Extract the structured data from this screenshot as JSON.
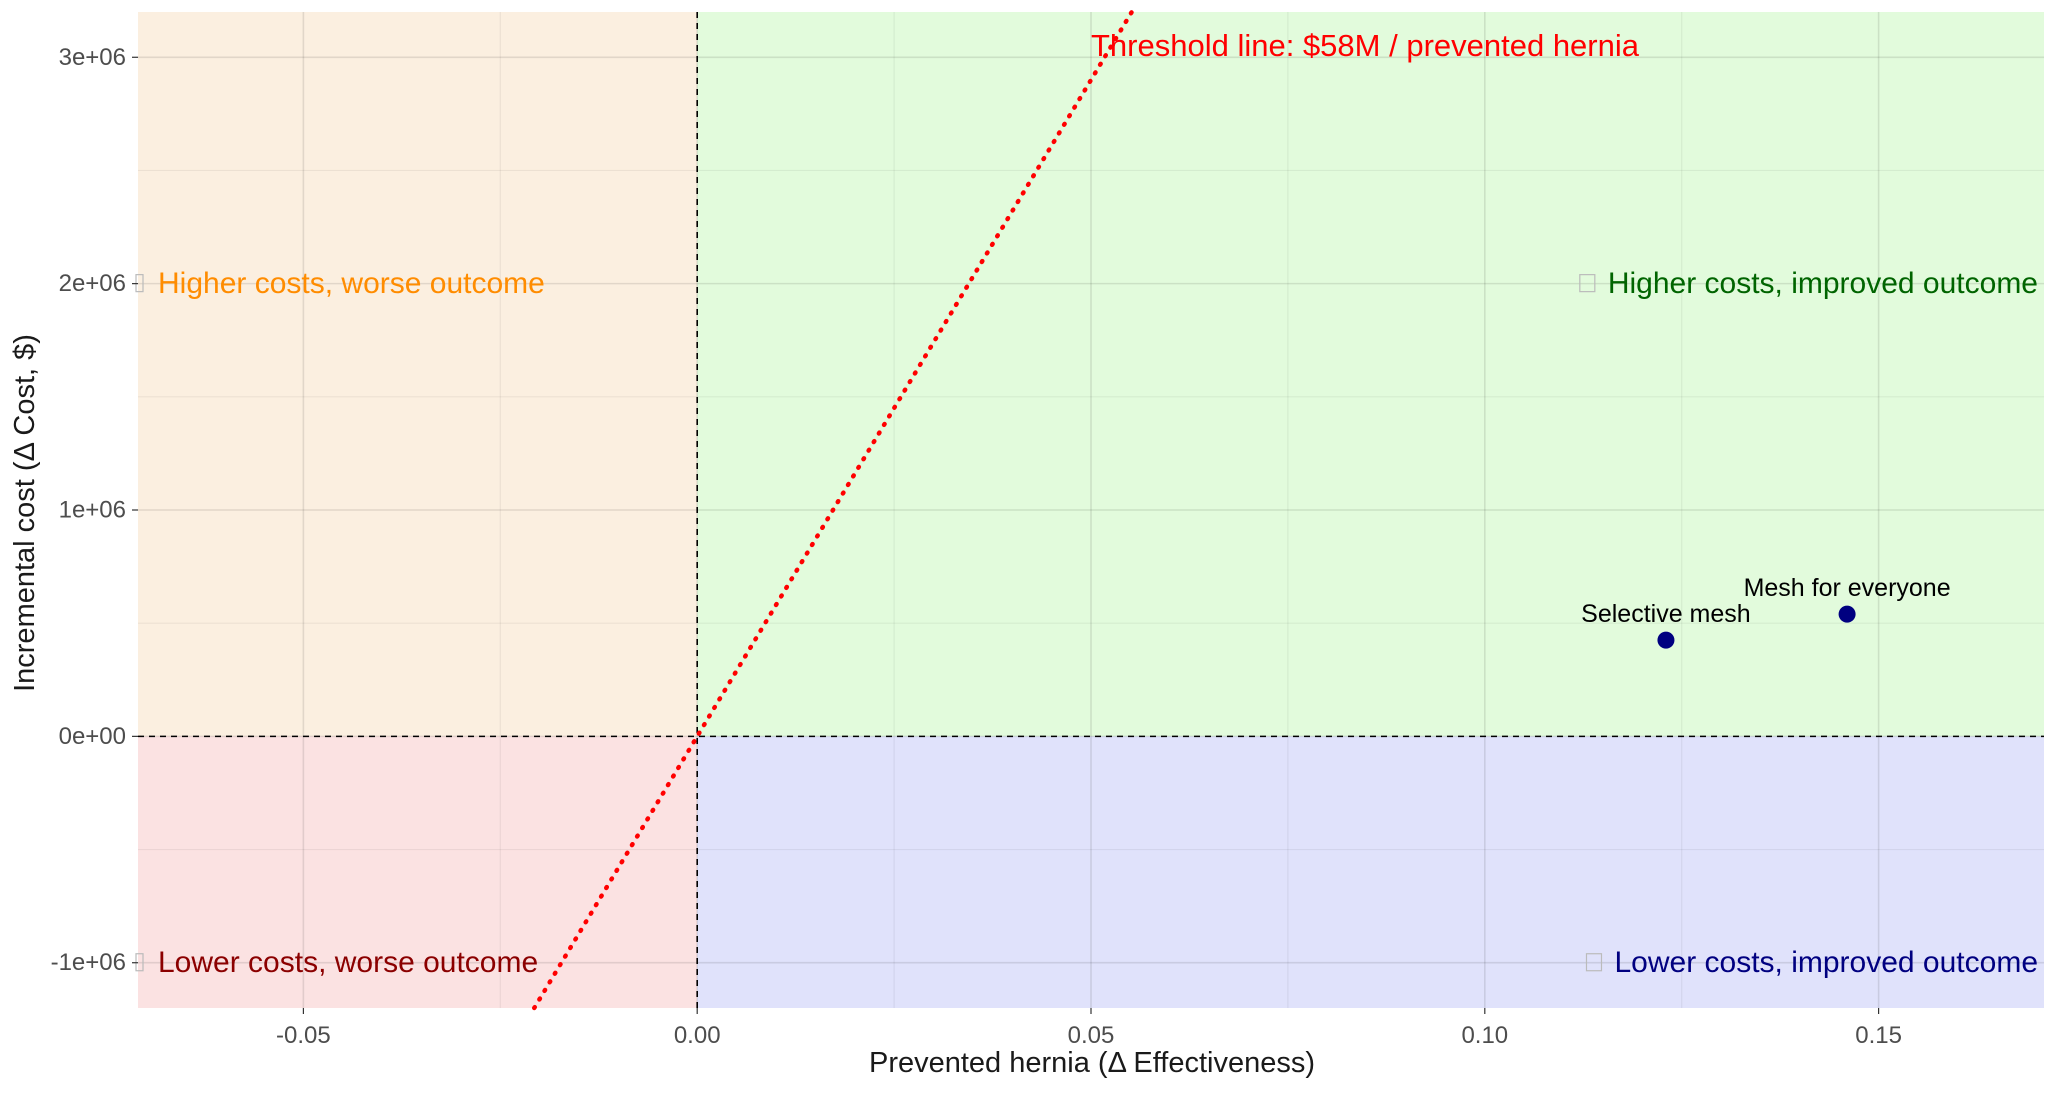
{
  "chart_data": {
    "type": "scatter",
    "xlabel": "Prevented hernia (Δ Effectiveness)",
    "ylabel": "Incremental cost (Δ Cost, $)",
    "xlim": [
      -0.071,
      0.171
    ],
    "ylim": [
      -1200000,
      3200000
    ],
    "x_ticks": [
      -0.05,
      0.0,
      0.05,
      0.1,
      0.15
    ],
    "x_tick_labels": [
      "-0.05",
      "0.00",
      "0.05",
      "0.10",
      "0.15"
    ],
    "x_minor_ticks": [
      -0.025,
      0.025,
      0.075,
      0.125
    ],
    "y_ticks": [
      -1000000,
      0,
      1000000,
      2000000,
      3000000
    ],
    "y_tick_labels": [
      "-1e+06",
      "0e+00",
      "1e+06",
      "2e+06",
      "3e+06"
    ],
    "y_minor_ticks": [
      -500000,
      500000,
      1500000,
      2500000
    ],
    "grid": true,
    "points": [
      {
        "label": "Selective mesh",
        "x": 0.123,
        "y": 425000
      },
      {
        "label": "Mesh for everyone",
        "x": 0.146,
        "y": 540000
      }
    ],
    "point_color": "#000080",
    "threshold": {
      "label": "Threshold line: $58M / prevented hernia",
      "slope": 58000000,
      "color": "#ff0000"
    },
    "quadrants": [
      {
        "key": "top-left",
        "label": "Higher costs, worse outcome",
        "fill": "#fbefe0",
        "text_color": "#ff8c00"
      },
      {
        "key": "top-right",
        "label": "Higher costs, improved outcome",
        "fill": "#e2fbdc",
        "text_color": "#006400"
      },
      {
        "key": "bottom-left",
        "label": "Lower costs, worse outcome",
        "fill": "#fbe2e2",
        "text_color": "#8b0000"
      },
      {
        "key": "bottom-right",
        "label": "Lower costs, improved outcome",
        "fill": "#e0e2fb",
        "text_color": "#000080"
      }
    ],
    "reference_lines": {
      "x": 0,
      "y": 0,
      "style": "dashed"
    }
  }
}
